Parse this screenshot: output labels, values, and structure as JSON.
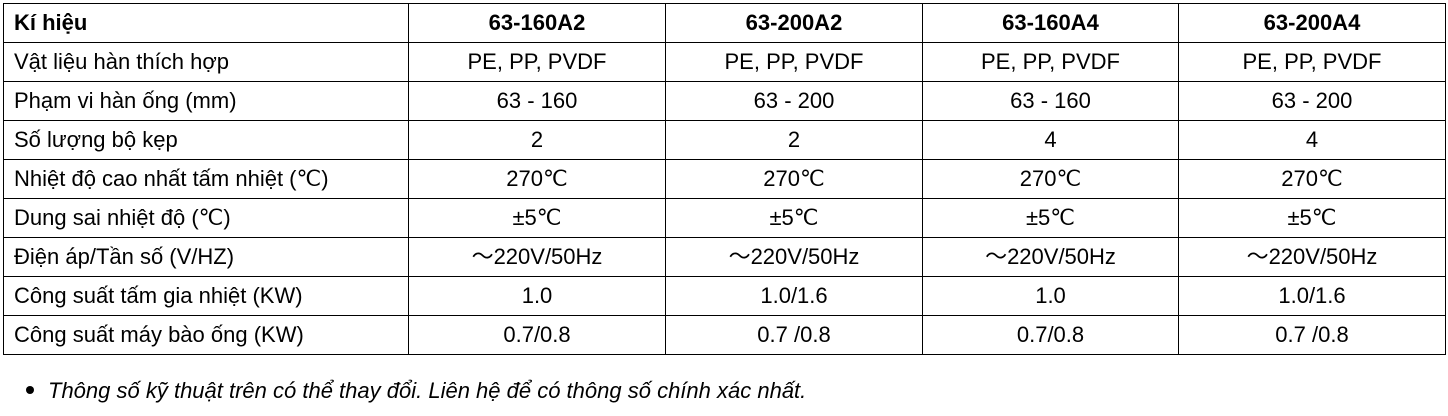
{
  "table": {
    "header": [
      "Kí hiệu",
      "63-160A2",
      "63-200A2",
      "63-160A4",
      "63-200A4"
    ],
    "rows": [
      [
        "Vật liệu hàn thích hợp",
        "PE, PP, PVDF",
        "PE, PP, PVDF",
        "PE, PP, PVDF",
        "PE, PP, PVDF"
      ],
      [
        "Phạm vi hàn ống (mm)",
        "63 - 160",
        "63  -  200",
        "63 - 160",
        "63  -  200"
      ],
      [
        "Số lượng bộ kẹp",
        "2",
        "2",
        "4",
        "4"
      ],
      [
        "Nhiệt độ cao nhất tấm nhiệt (℃)",
        "270℃",
        "270℃",
        "270℃",
        "270℃"
      ],
      [
        "Dung sai nhiệt độ (℃)",
        "±5℃",
        "±5℃",
        "±5℃",
        "±5℃"
      ],
      [
        "Điện áp/Tần số (V/HZ)",
        "～220V/50Hz",
        "～220V/50Hz",
        "～220V/50Hz",
        "～220V/50Hz"
      ],
      [
        "Công suất tấm gia nhiệt (KW)",
        "1.0",
        "1.0/1.6",
        "1.0",
        "1.0/1.6"
      ],
      [
        "Công suất máy bào ống (KW)",
        "0.7/0.8",
        "0.7 /0.8",
        "0.7/0.8",
        "0.7 /0.8"
      ]
    ]
  },
  "note": "Thông số kỹ thuật trên có thể thay đổi. Liên hệ để có thông số chính xác nhất."
}
